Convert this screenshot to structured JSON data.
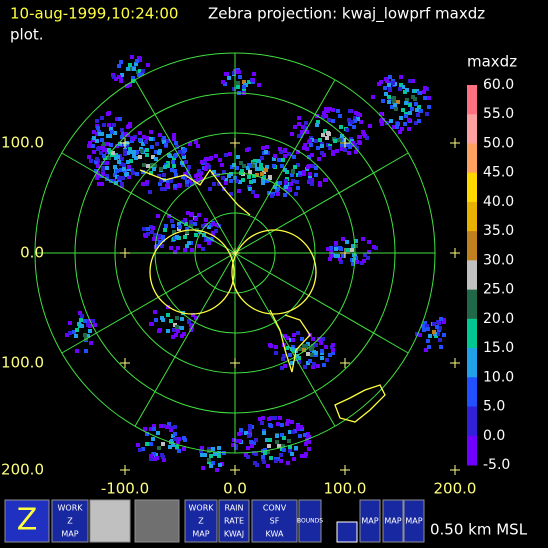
{
  "header": {
    "time": "10-aug-1999,10:24:00",
    "title": "Zebra projection: kwaj_lowprf maxdz",
    "title_cont": "plot."
  },
  "plot": {
    "y_labels": [
      "100.0",
      "0.0",
      "100.0",
      "200.0"
    ],
    "x_labels": [
      "-100.0",
      "0.0",
      "100.0",
      "200.0"
    ]
  },
  "colorbar": {
    "label": "maxdz",
    "ticks": [
      "60.0",
      "55.0",
      "50.0",
      "45.0",
      "40.0",
      "35.0",
      "30.0",
      "25.0",
      "20.0",
      "15.0",
      "10.0",
      "5.0",
      "0.0",
      "-5.0"
    ]
  },
  "toolbar": {
    "buttons": [
      [
        "Z"
      ],
      [
        "WORK",
        "Z",
        "MAP"
      ],
      [
        "WORK",
        "Z",
        "MAP"
      ],
      [
        "RAIN",
        "RATE",
        "KWAJ"
      ],
      [
        "CONV",
        "SF",
        "KWA"
      ],
      [
        "BOUNDS"
      ],
      [
        "MAP"
      ],
      [
        "MAP"
      ],
      [
        "MAP"
      ]
    ],
    "altitude": "0.50 km MSL"
  }
}
